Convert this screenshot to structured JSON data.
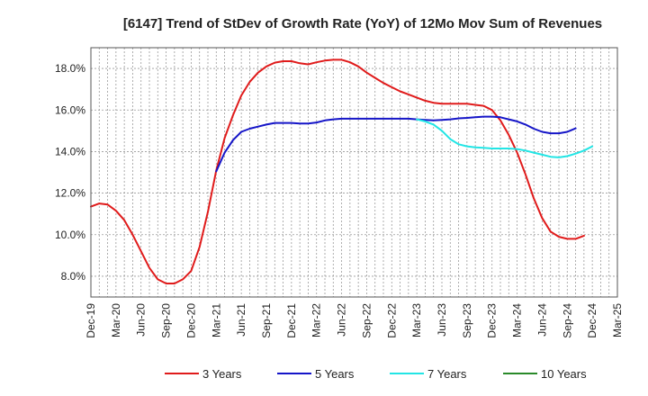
{
  "chart_data": {
    "type": "line",
    "title": "[6147]  Trend of StDev of Growth Rate (YoY) of 12Mo Mov Sum of Revenues",
    "xlabel": "",
    "ylabel": "",
    "ylim": [
      7.0,
      19.0
    ],
    "yticks": [
      8.0,
      10.0,
      12.0,
      14.0,
      16.0,
      18.0
    ],
    "ytick_labels": [
      "8.0%",
      "10.0%",
      "12.0%",
      "14.0%",
      "16.0%",
      "18.0%"
    ],
    "x_start": "Dec-19",
    "x_months": 63,
    "xtick_labels": [
      "Dec-19",
      "Mar-20",
      "Jun-20",
      "Sep-20",
      "Dec-20",
      "Mar-21",
      "Jun-21",
      "Sep-21",
      "Dec-21",
      "Mar-22",
      "Jun-22",
      "Sep-22",
      "Dec-22",
      "Mar-23",
      "Jun-23",
      "Sep-23",
      "Dec-23",
      "Mar-24",
      "Jun-24",
      "Sep-24",
      "Dec-24",
      "Mar-25"
    ],
    "grid": true,
    "legend_position": "bottom",
    "series": [
      {
        "name": "3 Years",
        "color": "#e01b1b",
        "start_index": 0,
        "values": [
          11.35,
          11.5,
          11.45,
          11.15,
          10.7,
          10.0,
          9.2,
          8.4,
          7.85,
          7.65,
          7.65,
          7.85,
          8.25,
          9.4,
          11.1,
          13.1,
          14.65,
          15.75,
          16.7,
          17.35,
          17.8,
          18.1,
          18.28,
          18.35,
          18.35,
          18.25,
          18.2,
          18.3,
          18.38,
          18.42,
          18.42,
          18.3,
          18.1,
          17.8,
          17.55,
          17.3,
          17.1,
          16.9,
          16.75,
          16.6,
          16.45,
          16.35,
          16.3,
          16.3,
          16.3,
          16.3,
          16.25,
          16.2,
          16.0,
          15.5,
          14.8,
          13.95,
          12.9,
          11.75,
          10.8,
          10.15,
          9.9,
          9.8,
          9.8,
          9.95
        ]
      },
      {
        "name": "5 Years",
        "color": "#1515c8",
        "start_index": 15,
        "values": [
          13.05,
          13.95,
          14.55,
          14.95,
          15.1,
          15.2,
          15.3,
          15.38,
          15.38,
          15.38,
          15.35,
          15.35,
          15.4,
          15.5,
          15.55,
          15.58,
          15.58,
          15.58,
          15.58,
          15.58,
          15.58,
          15.58,
          15.58,
          15.58,
          15.55,
          15.52,
          15.5,
          15.52,
          15.55,
          15.6,
          15.62,
          15.65,
          15.68,
          15.68,
          15.65,
          15.55,
          15.45,
          15.3,
          15.1,
          14.95,
          14.88,
          14.88,
          14.95,
          15.12
        ]
      },
      {
        "name": "7 Years",
        "color": "#22e5e5",
        "start_index": 39,
        "values": [
          15.55,
          15.45,
          15.3,
          15.0,
          14.6,
          14.35,
          14.25,
          14.2,
          14.18,
          14.15,
          14.15,
          14.15,
          14.12,
          14.05,
          13.95,
          13.85,
          13.75,
          13.72,
          13.78,
          13.9,
          14.05,
          14.25
        ]
      },
      {
        "name": "10 Years",
        "color": "#2a8a2a",
        "start_index": 0,
        "values": []
      }
    ]
  }
}
